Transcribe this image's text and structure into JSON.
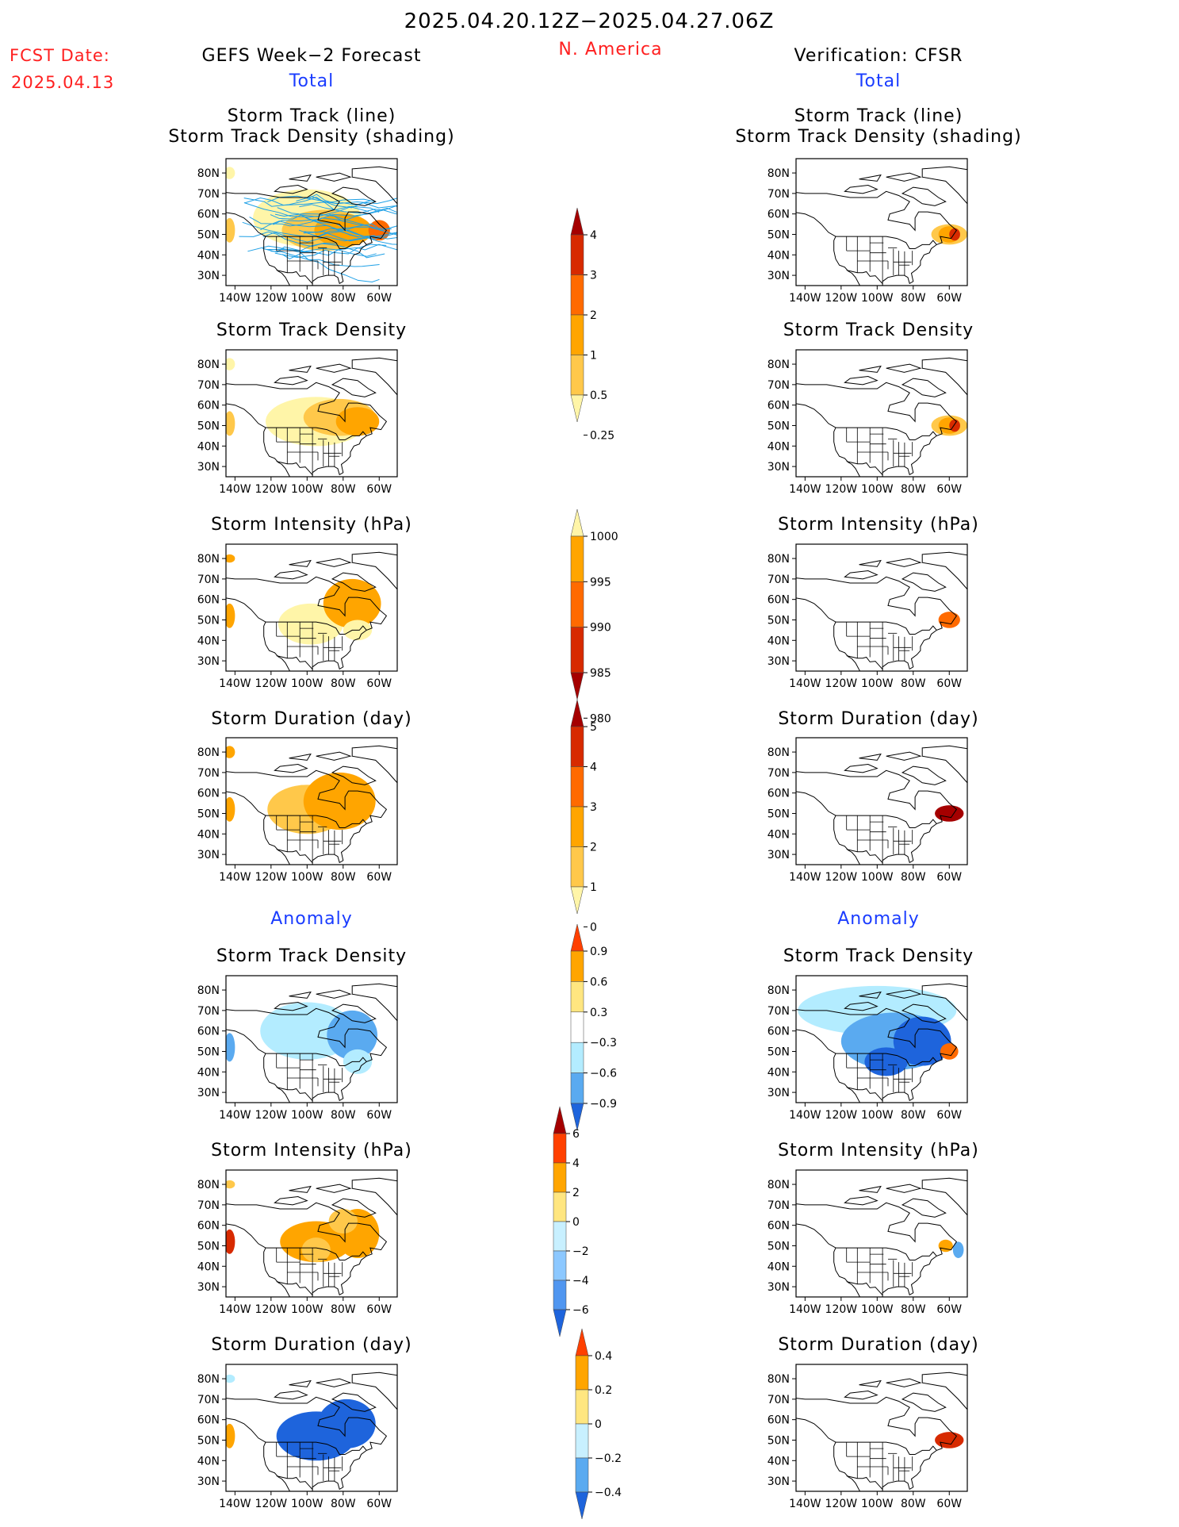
{
  "header": {
    "date_range": "2025.04.20.12Z−2025.04.27.06Z",
    "region": "N. America",
    "fcst_label": "FCST Date:",
    "fcst_date": "2025.04.13",
    "left_title": "GEFS Week−2 Forecast",
    "right_title": "Verification: CFSR",
    "total_label": "Total",
    "anomaly_label": "Anomaly"
  },
  "panel_titles": {
    "track_line": "Storm Track (line)",
    "track_density_shading": "Storm Track Density (shading)",
    "track_density": "Storm Track Density",
    "intensity": "Storm Intensity (hPa)",
    "duration": "Storm Duration (day)"
  },
  "map_axes": {
    "lat_labels": [
      "80N",
      "70N",
      "60N",
      "50N",
      "40N",
      "30N"
    ],
    "lon_labels": [
      "140W",
      "120W",
      "100W",
      "80W",
      "60W"
    ]
  },
  "colorbars": [
    {
      "id": "density_total",
      "labels": [
        "4",
        "3",
        "2",
        "1",
        "0.5",
        "0.25"
      ],
      "colors": [
        "#a50000",
        "#d72a00",
        "#ff6a00",
        "#ffa500",
        "#ffc84a",
        "#fff5a8"
      ]
    },
    {
      "id": "intensity_total",
      "labels": [
        "1000",
        "995",
        "990",
        "985",
        "980"
      ],
      "colors": [
        "#fff5a8",
        "#ffa500",
        "#ff6a00",
        "#d72a00",
        "#a50000"
      ]
    },
    {
      "id": "duration_total",
      "labels": [
        "5",
        "4",
        "3",
        "2",
        "1",
        "0"
      ],
      "colors": [
        "#a50000",
        "#d72a00",
        "#ff6a00",
        "#ffa500",
        "#ffc84a",
        "#fff5a8"
      ]
    },
    {
      "id": "density_anom",
      "labels": [
        "0.9",
        "0.6",
        "0.3",
        "−0.3",
        "−0.6",
        "−0.9"
      ],
      "colors": [
        "#ff4000",
        "#ffa500",
        "#ffe680",
        "#ffffff",
        "#b3ecff",
        "#5aaaf0",
        "#1e64dc"
      ]
    },
    {
      "id": "intensity_anom",
      "labels": [
        "6",
        "4",
        "2",
        "0",
        "−2",
        "−4",
        "−6"
      ],
      "colors": [
        "#a50000",
        "#ff4000",
        "#ffa500",
        "#ffe680",
        "#c8f0ff",
        "#8cc8ff",
        "#5096f0",
        "#1e64dc"
      ]
    },
    {
      "id": "duration_anom",
      "labels": [
        "0.4",
        "0.2",
        "0",
        "−0.2",
        "−0.4"
      ],
      "colors": [
        "#ff4000",
        "#ffa500",
        "#ffe680",
        "#c8f0ff",
        "#5aaaf0",
        "#1e64dc"
      ]
    }
  ],
  "colors": {
    "red_text": "#ff2020",
    "blue_text": "#1a3cff",
    "track_lines": "#1ea0e6"
  }
}
